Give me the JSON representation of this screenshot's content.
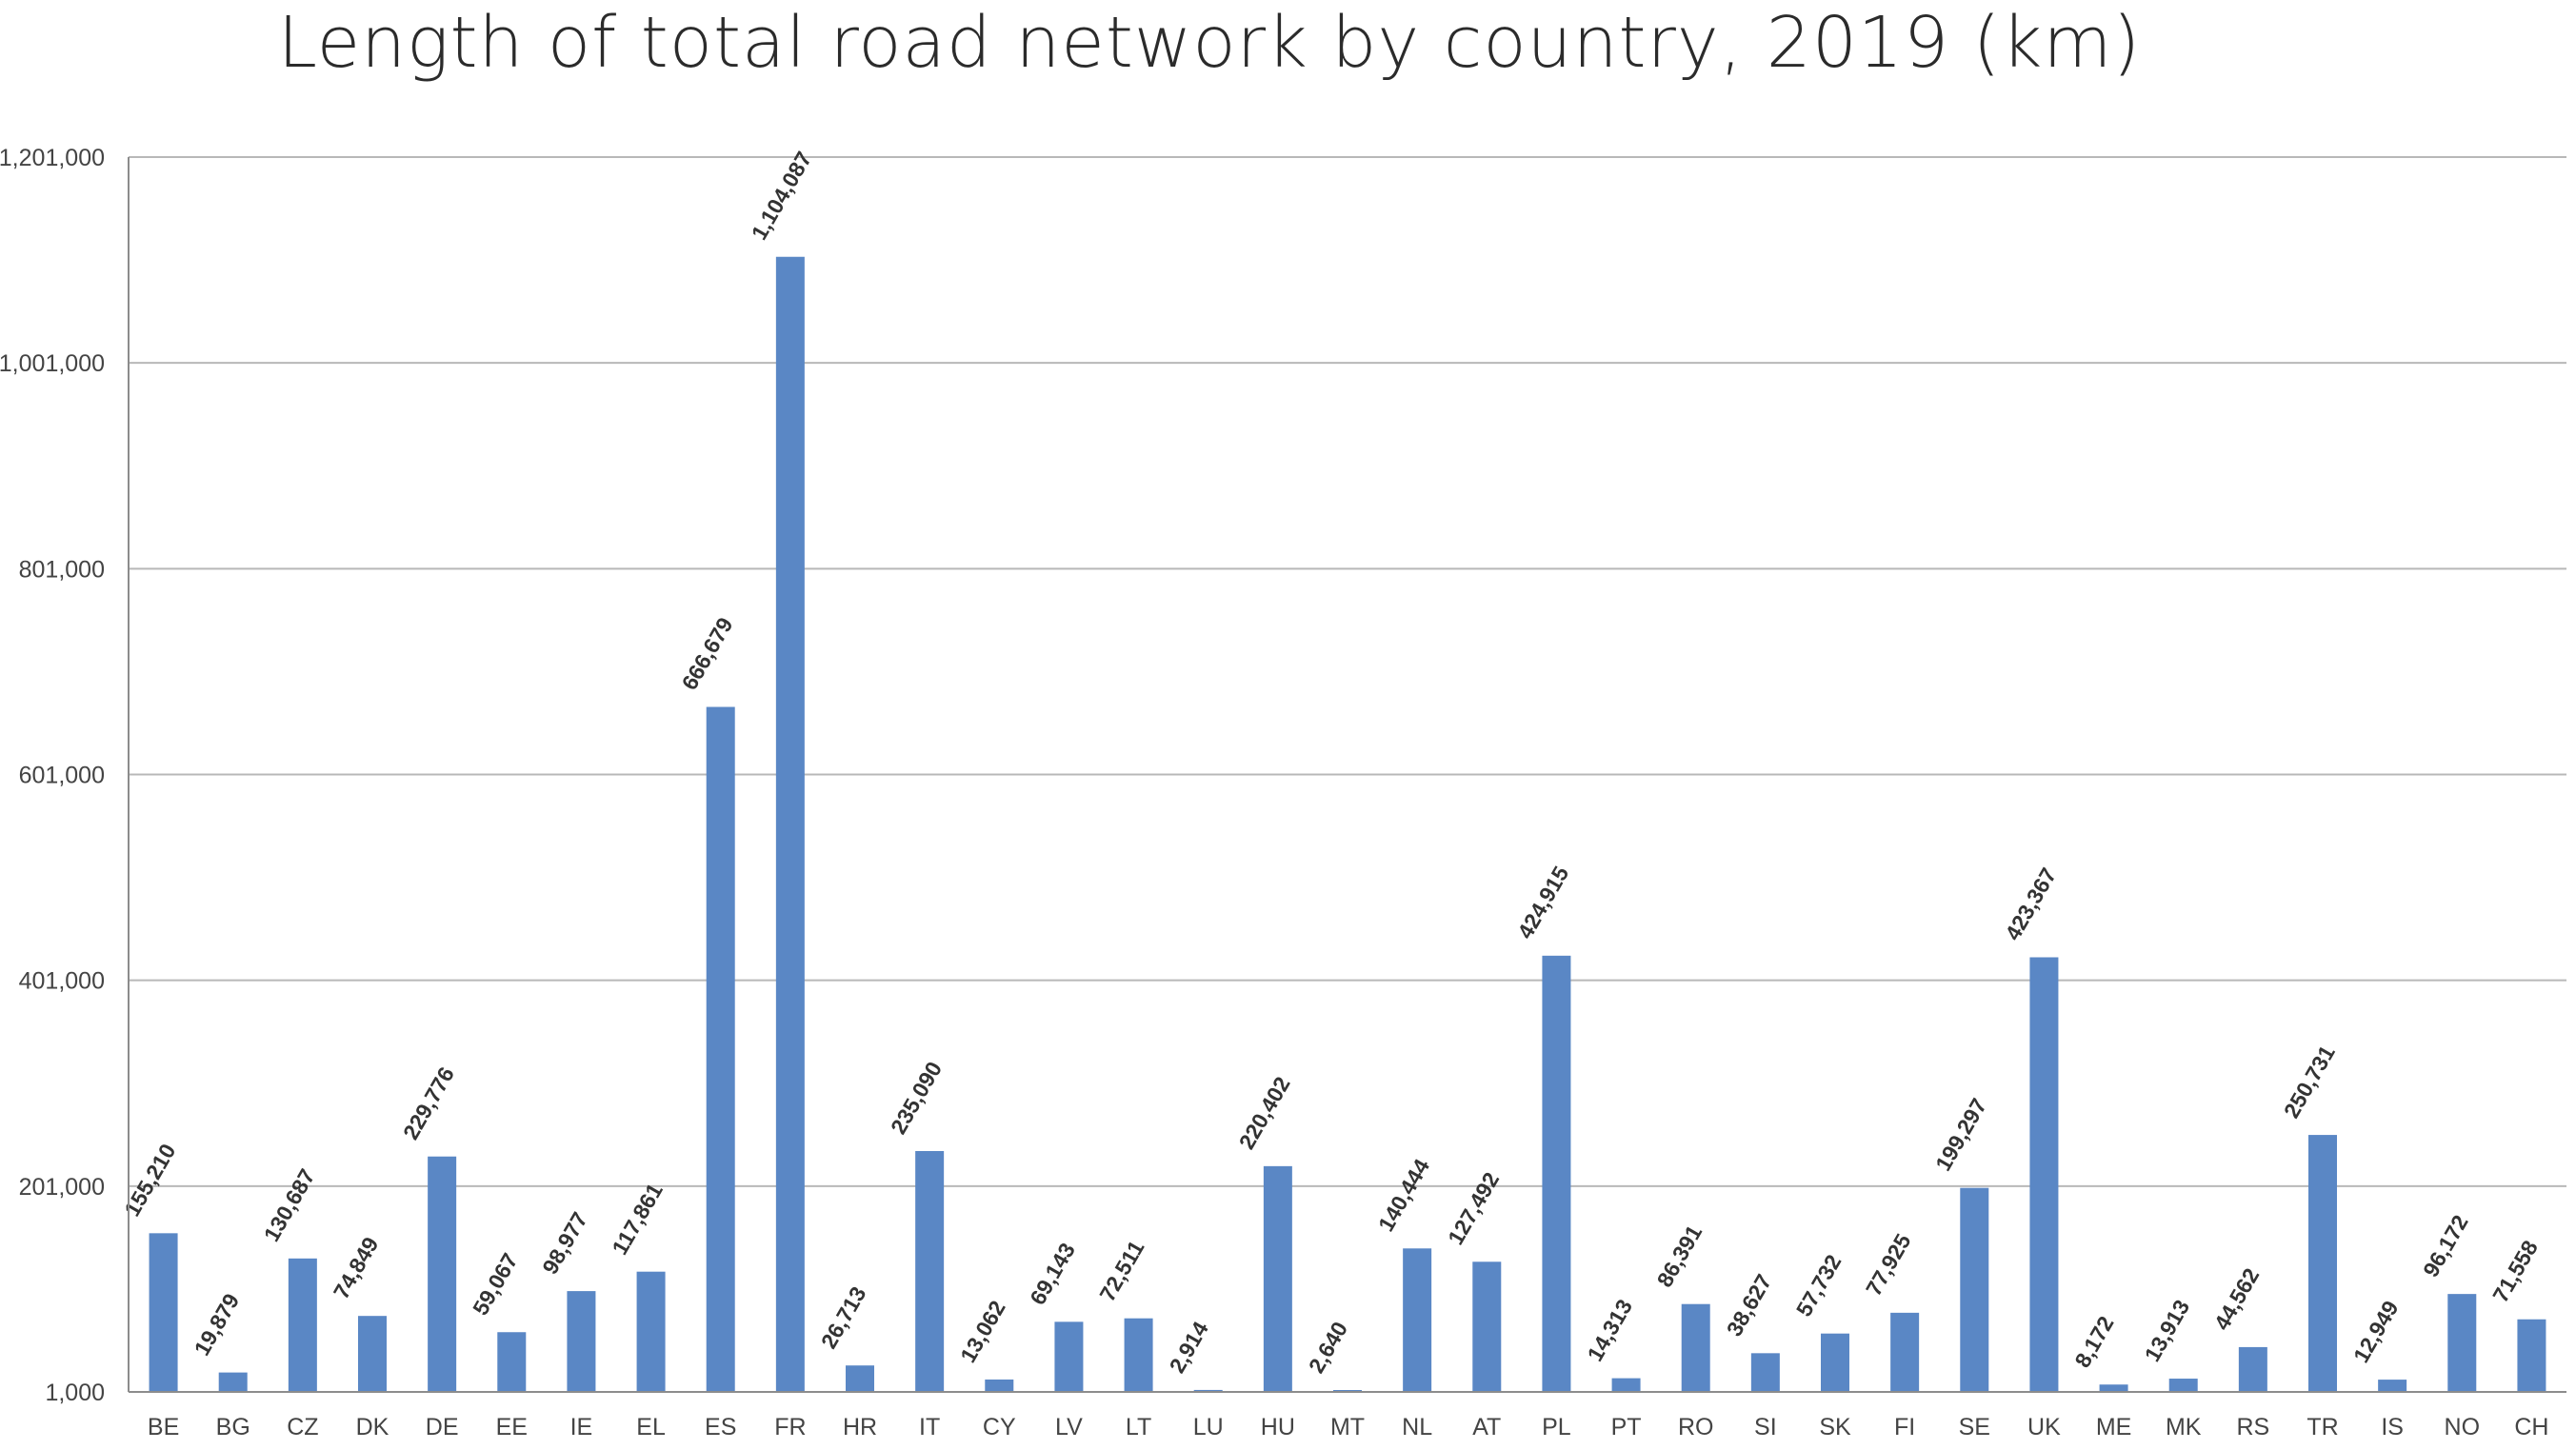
{
  "colors": {
    "bar": "#5a87c5",
    "grid": "#b8b8b8",
    "axis": "#8c8c8c"
  },
  "chart_data": {
    "type": "bar",
    "title": "Length of total road network by country, 2019 (km)",
    "xlabel": "",
    "ylabel": "",
    "ylim": [
      1000,
      1201000
    ],
    "yticks": [
      1000,
      201000,
      401000,
      601000,
      801000,
      1001000,
      1201000
    ],
    "ytick_labels": [
      "1,000",
      "201,000",
      "401,000",
      "601,000",
      "801,000",
      "1,001,000",
      "1,201,000"
    ],
    "grid": true,
    "legend": "none",
    "categories": [
      "BE",
      "BG",
      "CZ",
      "DK",
      "DE",
      "EE",
      "IE",
      "EL",
      "ES",
      "FR",
      "HR",
      "IT",
      "CY",
      "LV",
      "LT",
      "LU",
      "HU",
      "MT",
      "NL",
      "AT",
      "PL",
      "PT",
      "RO",
      "SI",
      "SK",
      "FI",
      "SE",
      "UK",
      "ME",
      "MK",
      "RS",
      "TR",
      "IS",
      "NO",
      "CH"
    ],
    "values": [
      155210,
      19879,
      130687,
      74849,
      229776,
      59067,
      98977,
      117861,
      666679,
      1104087,
      26713,
      235090,
      13062,
      69143,
      72511,
      2914,
      220402,
      2640,
      140444,
      127492,
      424915,
      14313,
      86391,
      38627,
      57732,
      77925,
      199297,
      423367,
      8172,
      13913,
      44562,
      250731,
      12949,
      96172,
      71558
    ],
    "value_labels": [
      "155,210",
      "19,879",
      "130,687",
      "74,849",
      "229,776",
      "59,067",
      "98,977",
      "117,861",
      "666,679",
      "1,104,087",
      "26,713",
      "235,090",
      "13,062",
      "69,143",
      "72,511",
      "2,914",
      "220,402",
      "2,640",
      "140,444",
      "127,492",
      "424,915",
      "14,313",
      "86,391",
      "38,627",
      "57,732",
      "77,925",
      "199,297",
      "423,367",
      "8,172",
      "13,913",
      "44,562",
      "250,731",
      "12,949",
      "96,172",
      "71,558"
    ]
  }
}
